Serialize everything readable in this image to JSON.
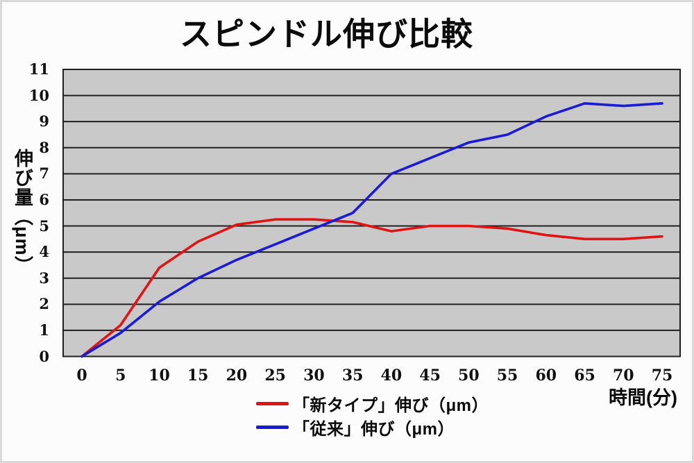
{
  "page": {
    "background": "#fcfcfc",
    "frame_color": "#d9d9d9"
  },
  "chart_data": {
    "type": "line",
    "title": "スピンドル伸び比較",
    "xlabel": "時間(分)",
    "ylabel": "伸び量（μm）",
    "x": [
      0,
      5,
      10,
      15,
      20,
      25,
      30,
      35,
      40,
      45,
      50,
      55,
      60,
      65,
      70,
      75
    ],
    "xtick_labels": [
      "0",
      "5",
      "10",
      "15",
      "20",
      "25",
      "30",
      "35",
      "40",
      "45",
      "50",
      "55",
      "60",
      "65",
      "70",
      "75"
    ],
    "yticks": [
      0,
      1,
      2,
      3,
      4,
      5,
      6,
      7,
      8,
      9,
      10,
      11
    ],
    "ylim": [
      0,
      11
    ],
    "xlim": [
      0,
      75
    ],
    "grid": "horizontal",
    "legend_position": "bottom-center",
    "colors": {
      "plot_bg": "#c9c9c9",
      "grid": "#1f1f1f",
      "axis": "#1f1f1f"
    },
    "series": [
      {
        "name": "「新タイプ」伸び（μm）",
        "color": "#e01414",
        "values": [
          0,
          1.2,
          3.4,
          4.4,
          5.05,
          5.25,
          5.25,
          5.15,
          4.8,
          5.0,
          5.0,
          4.9,
          4.65,
          4.5,
          4.5,
          4.6
        ]
      },
      {
        "name": "「従来」伸び（μm）",
        "color": "#1b1bd6",
        "values": [
          0,
          0.9,
          2.1,
          3.0,
          3.7,
          4.3,
          4.9,
          5.5,
          7.0,
          7.6,
          8.2,
          8.5,
          9.2,
          9.7,
          9.6,
          9.7
        ]
      }
    ]
  }
}
